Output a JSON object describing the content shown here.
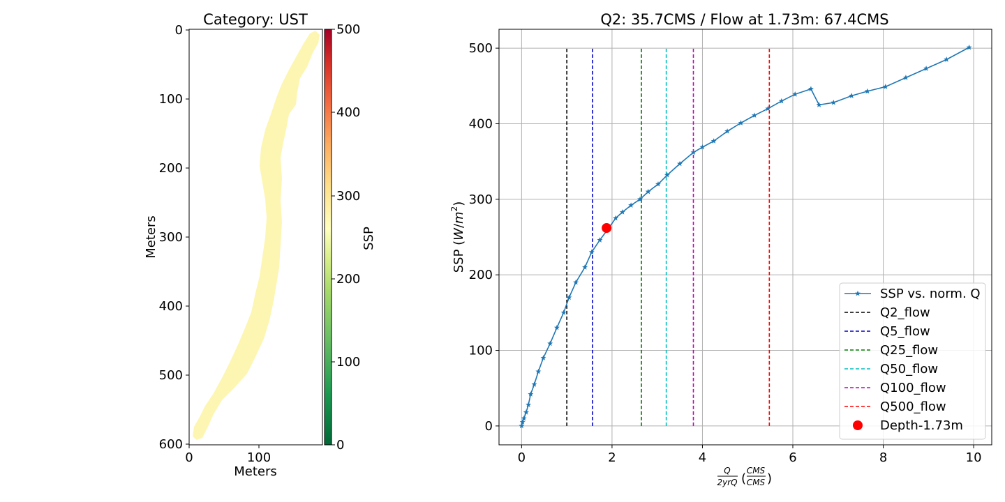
{
  "map_panel": {
    "title": "Category: UST",
    "xlabel": "Meters",
    "ylabel": "Meters",
    "x_ticks": [
      "0",
      "100"
    ],
    "y_ticks": [
      "0",
      "100",
      "200",
      "300",
      "400",
      "500",
      "600"
    ],
    "river_fill_color": "#fdf6b2"
  },
  "colorbar": {
    "label": "SSP",
    "ticks": [
      "0",
      "100",
      "200",
      "300",
      "400",
      "500"
    ],
    "colormap": "RdYlGn_r",
    "range": [
      0,
      500
    ]
  },
  "chart_data": {
    "type": "line",
    "title": "Q2: 35.7CMS / Flow at 1.73m: 67.4CMS",
    "xlabel": "Q / 2yrQ (CMS / CMS)",
    "ylabel": "SSP (W/m²)",
    "xlim": [
      -0.5,
      10.4
    ],
    "ylim": [
      -25,
      525
    ],
    "x_ticks": [
      0,
      2,
      4,
      6,
      8,
      10
    ],
    "y_ticks": [
      0,
      100,
      200,
      300,
      400,
      500
    ],
    "grid": true,
    "legend_position": "lower right",
    "series": [
      {
        "name": "SSP vs. norm. Q",
        "color": "#1f77b4",
        "marker": "star",
        "x": [
          0.0,
          0.02,
          0.05,
          0.1,
          0.15,
          0.2,
          0.28,
          0.37,
          0.48,
          0.63,
          0.78,
          0.93,
          1.05,
          1.2,
          1.4,
          1.55,
          1.73,
          1.93,
          2.08,
          2.23,
          2.42,
          2.62,
          2.8,
          3.02,
          3.22,
          3.5,
          3.8,
          4.0,
          4.25,
          4.55,
          4.85,
          5.15,
          5.45,
          5.75,
          6.05,
          6.4,
          6.58,
          6.9,
          7.3,
          7.65,
          8.05,
          8.5,
          8.95,
          9.4,
          9.9
        ],
        "y": [
          0,
          5,
          10,
          18,
          28,
          42,
          55,
          72,
          90,
          109,
          130,
          150,
          170,
          190,
          210,
          230,
          246,
          262,
          275,
          283,
          292,
          300,
          310,
          320,
          332,
          347,
          362,
          369,
          377,
          390,
          401,
          411,
          420,
          430,
          439,
          446,
          425,
          428,
          437,
          443,
          449,
          461,
          473,
          485,
          501
        ]
      }
    ],
    "vlines": [
      {
        "name": "Q2_flow",
        "x": 1.0,
        "color": "#000000"
      },
      {
        "name": "Q5_flow",
        "x": 1.57,
        "color": "#0000cc"
      },
      {
        "name": "Q25_flow",
        "x": 2.65,
        "color": "#008000"
      },
      {
        "name": "Q50_flow",
        "x": 3.2,
        "color": "#00bfbf"
      },
      {
        "name": "Q100_flow",
        "x": 3.8,
        "color": "#bf00bf"
      },
      {
        "name": "Q500_flow",
        "x": 5.48,
        "color": "#ff0000"
      }
    ],
    "vline_range": [
      0,
      500
    ],
    "point": {
      "name": "Depth-1.73m",
      "x": 1.88,
      "y": 262,
      "color": "#ff0000"
    }
  }
}
